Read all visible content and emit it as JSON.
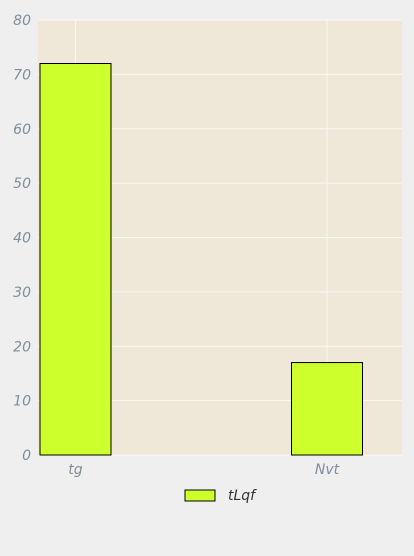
{
  "chart_data": {
    "type": "bar",
    "categories": [
      "tg",
      "Nvt"
    ],
    "series": [
      {
        "name": "tLqf",
        "values": [
          72,
          17
        ]
      }
    ],
    "title": "",
    "xlabel": "",
    "ylabel": "",
    "ylim": [
      0,
      80
    ],
    "yticks": [
      0,
      10,
      20,
      30,
      40,
      50,
      60,
      70,
      80
    ],
    "grid": true,
    "legend": "bottom-center",
    "colors": {
      "page_background": "#efefef",
      "plot_background": "#efe8d8",
      "bar_fill": "#ccff2b",
      "bar_stroke": "#000000",
      "grid": "#fbf8f0",
      "tick_label": "#7f8e9b"
    }
  }
}
